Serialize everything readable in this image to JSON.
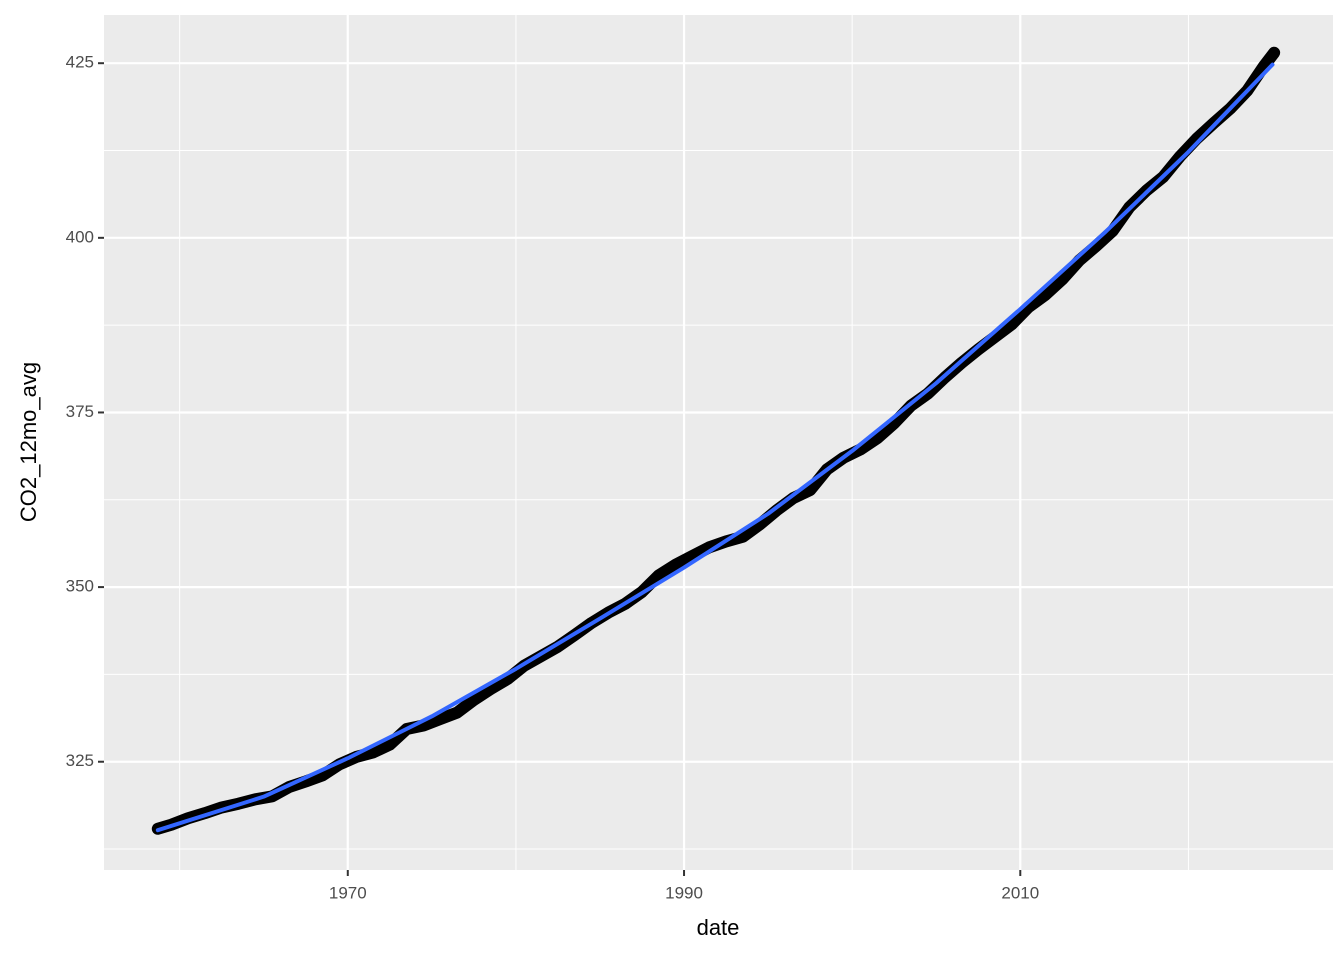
{
  "chart_data": {
    "type": "line",
    "x_label": "date",
    "y_label": "CO2_12mo_avg",
    "xlim": [
      1955.5,
      2028.6
    ],
    "ylim": [
      309.5,
      431.9
    ],
    "xticks": [
      1970,
      1990,
      2010
    ],
    "yticks": [
      325,
      350,
      375,
      400,
      425
    ],
    "minor_xticks": [
      1960,
      1980,
      2000,
      2020
    ],
    "minor_yticks": [
      312.5,
      337.5,
      362.5,
      387.5,
      412.5
    ],
    "grid": true,
    "background": "#ebebeb",
    "grid_color": "#ffffff",
    "series": [
      {
        "color": "#000000",
        "width": 12,
        "x": [
          1958.7,
          1959.5,
          1960.5,
          1961.5,
          1962.5,
          1963.5,
          1964.5,
          1965.5,
          1966.5,
          1967.5,
          1968.5,
          1969.5,
          1970.5,
          1971.5,
          1972.5,
          1973.5,
          1974.5,
          1975.5,
          1976.5,
          1977.5,
          1978.5,
          1979.5,
          1980.5,
          1981.5,
          1982.5,
          1983.5,
          1984.5,
          1985.5,
          1986.5,
          1987.5,
          1988.5,
          1989.5,
          1990.5,
          1991.5,
          1992.5,
          1993.5,
          1994.5,
          1995.5,
          1996.5,
          1997.5,
          1998.5,
          1999.5,
          2000.5,
          2001.5,
          2002.5,
          2003.5,
          2004.5,
          2005.5,
          2006.5,
          2007.5,
          2008.5,
          2009.5,
          2010.5,
          2011.5,
          2012.5,
          2013.5,
          2014.5,
          2015.5,
          2016.5,
          2017.5,
          2018.5,
          2019.5,
          2020.5,
          2021.5,
          2022.5,
          2023.5,
          2024.5,
          2025.1
        ],
        "values": [
          315.4,
          315.98,
          316.91,
          317.64,
          318.45,
          318.99,
          319.62,
          320.04,
          321.37,
          322.18,
          323.05,
          324.62,
          325.68,
          326.32,
          327.46,
          329.68,
          330.19,
          331.12,
          332.03,
          333.84,
          335.41,
          336.84,
          338.76,
          340.12,
          341.48,
          343.15,
          344.87,
          346.35,
          347.61,
          349.31,
          351.69,
          353.2,
          354.45,
          355.7,
          356.54,
          357.21,
          358.96,
          360.97,
          362.74,
          363.88,
          366.84,
          368.54,
          369.71,
          371.32,
          373.45,
          375.98,
          377.7,
          379.98,
          382.09,
          384.02,
          385.83,
          387.64,
          390.1,
          391.85,
          394.06,
          396.74,
          398.81,
          401.01,
          404.41,
          406.76,
          408.72,
          411.65,
          414.21,
          416.41,
          418.53,
          421.08,
          424.61,
          426.5
        ]
      },
      {
        "color": "#3366ff",
        "width": 4,
        "x": [
          1958.7,
          1965,
          1970,
          1975,
          1980,
          1985,
          1990,
          1995,
          2000,
          2005,
          2010,
          2015,
          2020,
          2025
        ],
        "values": [
          315.2,
          320.0,
          325.5,
          331.5,
          338.3,
          345.5,
          352.8,
          360.5,
          369.5,
          379.2,
          389.8,
          400.7,
          412.3,
          424.8
        ]
      }
    ]
  }
}
